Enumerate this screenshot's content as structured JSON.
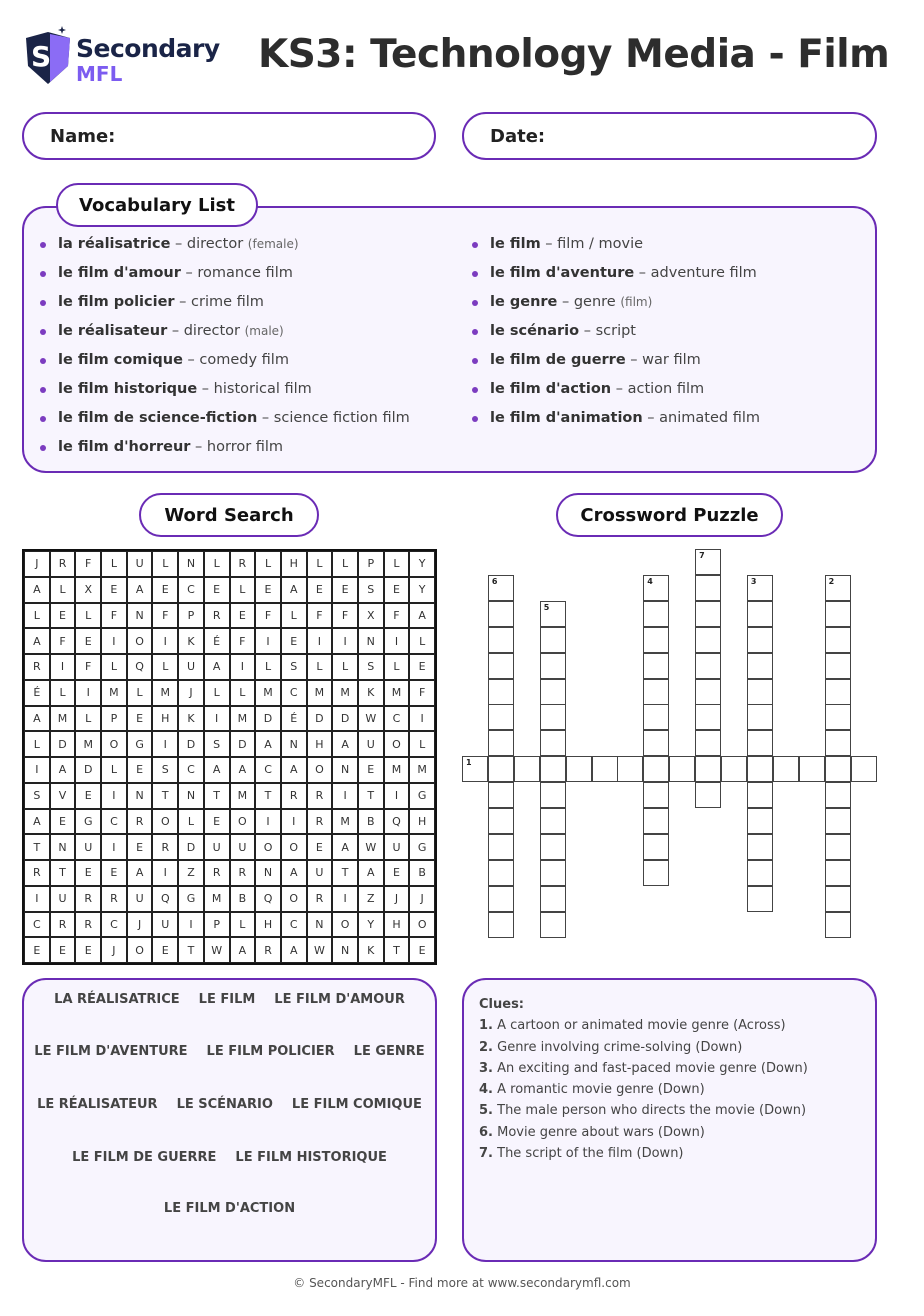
{
  "logo": {
    "line1": "Secondary",
    "line2": "MFL"
  },
  "title": "KS3: Technology Media - Film",
  "fields": {
    "name": "Name:",
    "date": "Date:"
  },
  "vocab": {
    "heading": "Vocabulary List",
    "left": [
      {
        "fr": "la réalisatrice",
        "en": "director",
        "note": "(female)"
      },
      {
        "fr": "le film d'amour",
        "en": "romance film"
      },
      {
        "fr": "le film policier",
        "en": "crime film"
      },
      {
        "fr": "le réalisateur",
        "en": "director",
        "note": "(male)"
      },
      {
        "fr": "le film comique",
        "en": "comedy film"
      },
      {
        "fr": "le film historique",
        "en": "historical film"
      },
      {
        "fr": "le film de science-fiction",
        "en": "science fiction film"
      },
      {
        "fr": "le film d'horreur",
        "en": "horror film"
      }
    ],
    "right": [
      {
        "fr": "le film",
        "en": "film / movie"
      },
      {
        "fr": "le film d'aventure",
        "en": "adventure film"
      },
      {
        "fr": "le genre",
        "en": "genre",
        "note": "(film)"
      },
      {
        "fr": "le scénario",
        "en": "script"
      },
      {
        "fr": "le film de guerre",
        "en": "war film"
      },
      {
        "fr": "le film d'action",
        "en": "action film"
      },
      {
        "fr": "le film d'animation",
        "en": "animated film"
      }
    ]
  },
  "wordsearch": {
    "heading": "Word Search",
    "grid": [
      "JRFLULNLRLHLLPLY",
      "ALXEAECELEAEESEY",
      "LELFNFPREFLFFXFA",
      "AFEIOIKÉFIEIINIL",
      "RIFLQLUAILSLLSLE",
      "ÉLIMLMJLLMCMMKMF",
      "AMLPEHKIMDÉDDWCI",
      "LDMOGIDSDANHAUOL",
      "IADLESCAACAONEMM",
      "SVEINTNTMTRRITIG",
      "AEGCROLEOIIRMBQH",
      "TNUIERDUUOOEAWUG",
      "RTEEAIZRRNAUTAEB",
      "IURRUQGMBQORIZJJ",
      "CRRCJUIPLHCNOYHO",
      "EEEJOETWARAWNKTE"
    ],
    "words": [
      [
        "LA RÉALISATRICE",
        "LE FILM",
        "LE FILM D'AMOUR"
      ],
      [
        "LE FILM D'AVENTURE",
        "LE FILM POLICIER",
        "LE GENRE"
      ],
      [
        "LE RÉALISATEUR",
        "LE SCÉNARIO",
        "LE FILM COMIQUE"
      ],
      [
        "LE FILM DE GUERRE",
        "LE FILM HISTORIQUE"
      ],
      [
        "LE FILM D'ACTION"
      ]
    ]
  },
  "crossword": {
    "heading": "Crossword Puzzle",
    "clues_heading": "Clues:",
    "clues": [
      {
        "n": "1.",
        "text": "A cartoon or animated movie genre (Across)"
      },
      {
        "n": "2.",
        "text": "Genre involving crime-solving (Down)"
      },
      {
        "n": "3.",
        "text": "An exciting and fast-paced movie genre (Down)"
      },
      {
        "n": "4.",
        "text": "A romantic movie genre (Down)"
      },
      {
        "n": "5.",
        "text": "The male person who directs the movie (Down)"
      },
      {
        "n": "6.",
        "text": "Movie genre about wars (Down)"
      },
      {
        "n": "7.",
        "text": "The script of the film (Down)"
      }
    ]
  },
  "footer": "© SecondaryMFL - Find more at www.secondarymfl.com",
  "colors": {
    "accent": "#6a2bb5",
    "box_bg": "#f8f5fe",
    "logo_navy": "#1a2447",
    "logo_violet": "#7c5cf0"
  }
}
